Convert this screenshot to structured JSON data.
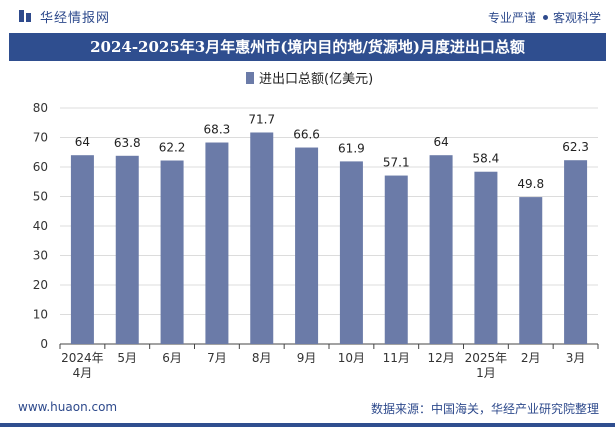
{
  "header": {
    "brand": "华经情报网",
    "slogan_left": "专业严谨",
    "slogan_right": "客观科学"
  },
  "chart_data": {
    "type": "bar",
    "title": "2024-2025年3月年惠州市(境内目的地/货源地)月度进出口总额",
    "categories": [
      [
        "2024年",
        "4月"
      ],
      [
        "5月"
      ],
      [
        "6月"
      ],
      [
        "7月"
      ],
      [
        "8月"
      ],
      [
        "9月"
      ],
      [
        "10月"
      ],
      [
        "11月"
      ],
      [
        "12月"
      ],
      [
        "2025年",
        "1月"
      ],
      [
        "2月"
      ],
      [
        "3月"
      ]
    ],
    "series": [
      {
        "name": "进出口总额(亿美元)",
        "values": [
          64,
          63.8,
          62.2,
          68.3,
          71.7,
          66.6,
          61.9,
          57.1,
          64,
          58.4,
          49.8,
          62.3
        ]
      }
    ],
    "data_labels": [
      "64",
      "63.8",
      "62.2",
      "68.3",
      "71.7",
      "66.6",
      "61.9",
      "57.1",
      "64",
      "58.4",
      "49.8",
      "62.3"
    ],
    "ylim": [
      0,
      80
    ],
    "yticks": [
      0,
      10,
      20,
      30,
      40,
      50,
      60,
      70,
      80
    ],
    "grid": true,
    "legend": "top-center",
    "colors": {
      "bar": "#6b7ba8",
      "axis": "#444444"
    }
  },
  "footer": {
    "website": "www.huaon.com",
    "source": "数据来源：中国海关，华经产业研究院整理"
  }
}
